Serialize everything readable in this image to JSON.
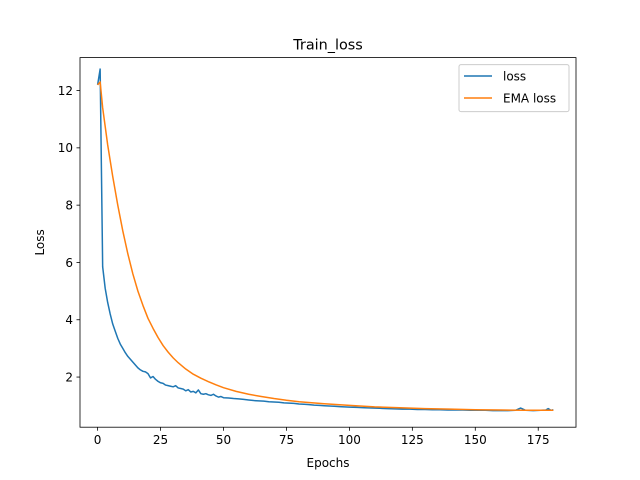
{
  "chart_data": {
    "type": "line",
    "title": "Train_loss",
    "xlabel": "Epochs",
    "ylabel": "Loss",
    "xlim": [
      -7,
      190
    ],
    "ylim": [
      0.25,
      13.15
    ],
    "xticks": [
      0,
      25,
      50,
      75,
      100,
      125,
      150,
      175
    ],
    "yticks": [
      2,
      4,
      6,
      8,
      10,
      12
    ],
    "grid": false,
    "legend_position": "upper right",
    "series": [
      {
        "name": "loss",
        "color": "#1f77b4",
        "x": [
          0,
          1,
          2,
          3,
          4,
          5,
          6,
          7,
          8,
          9,
          10,
          11,
          12,
          13,
          14,
          15,
          16,
          17,
          18,
          19,
          20,
          21,
          22,
          23,
          24,
          25,
          26,
          27,
          28,
          29,
          30,
          31,
          32,
          33,
          34,
          35,
          36,
          37,
          38,
          39,
          40,
          41,
          42,
          43,
          44,
          45,
          46,
          47,
          48,
          49,
          50,
          52,
          54,
          56,
          58,
          60,
          62,
          64,
          66,
          68,
          70,
          72,
          74,
          76,
          78,
          80,
          82,
          84,
          86,
          88,
          90,
          92,
          94,
          96,
          98,
          100,
          103,
          106,
          109,
          112,
          115,
          118,
          121,
          124,
          127,
          130,
          133,
          136,
          139,
          142,
          145,
          148,
          151,
          154,
          157,
          160,
          163,
          166,
          168,
          170,
          173,
          176,
          178,
          179,
          180,
          181
        ],
        "y": [
          12.2,
          12.75,
          5.85,
          5.1,
          4.6,
          4.2,
          3.85,
          3.6,
          3.35,
          3.15,
          3.0,
          2.85,
          2.72,
          2.62,
          2.52,
          2.42,
          2.32,
          2.25,
          2.2,
          2.18,
          2.12,
          1.97,
          2.02,
          1.92,
          1.85,
          1.8,
          1.78,
          1.72,
          1.7,
          1.68,
          1.66,
          1.7,
          1.62,
          1.6,
          1.58,
          1.52,
          1.56,
          1.48,
          1.5,
          1.45,
          1.55,
          1.42,
          1.4,
          1.42,
          1.38,
          1.36,
          1.4,
          1.34,
          1.3,
          1.32,
          1.28,
          1.27,
          1.25,
          1.24,
          1.22,
          1.2,
          1.18,
          1.17,
          1.16,
          1.14,
          1.13,
          1.12,
          1.1,
          1.09,
          1.08,
          1.06,
          1.05,
          1.04,
          1.02,
          1.01,
          1.0,
          0.99,
          0.98,
          0.97,
          0.96,
          0.95,
          0.94,
          0.93,
          0.92,
          0.91,
          0.9,
          0.89,
          0.88,
          0.88,
          0.87,
          0.87,
          0.86,
          0.86,
          0.85,
          0.85,
          0.85,
          0.84,
          0.84,
          0.84,
          0.83,
          0.83,
          0.83,
          0.84,
          0.92,
          0.84,
          0.83,
          0.84,
          0.85,
          0.9,
          0.84,
          0.86
        ]
      },
      {
        "name": "EMA loss",
        "color": "#ff7f0e",
        "x": [
          0,
          1,
          2,
          4,
          6,
          8,
          10,
          12,
          14,
          16,
          18,
          20,
          22,
          24,
          26,
          28,
          30,
          32,
          35,
          38,
          41,
          44,
          47,
          50,
          55,
          60,
          65,
          70,
          75,
          80,
          90,
          100,
          110,
          120,
          130,
          140,
          150,
          160,
          170,
          181
        ],
        "y": [
          12.2,
          12.3,
          11.4,
          10.1,
          9.0,
          8.0,
          7.1,
          6.3,
          5.6,
          5.0,
          4.5,
          4.05,
          3.7,
          3.38,
          3.1,
          2.87,
          2.67,
          2.5,
          2.28,
          2.1,
          1.96,
          1.84,
          1.73,
          1.63,
          1.5,
          1.4,
          1.32,
          1.25,
          1.19,
          1.14,
          1.07,
          1.01,
          0.96,
          0.93,
          0.9,
          0.88,
          0.86,
          0.85,
          0.84,
          0.84
        ]
      }
    ]
  }
}
